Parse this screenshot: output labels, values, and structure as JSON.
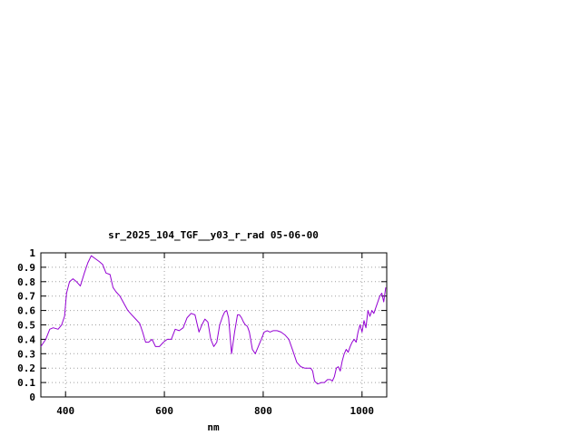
{
  "chart_data": {
    "type": "line",
    "title": "sr_2025_104_TGF__y03_r_rad 05-06-00",
    "xlabel": "nm",
    "ylabel": "",
    "xlim": [
      350,
      1050
    ],
    "ylim": [
      0,
      1
    ],
    "x_ticks": [
      400,
      600,
      800,
      1000
    ],
    "y_ticks": [
      0,
      0.1,
      0.2,
      0.3,
      0.4,
      0.5,
      0.6,
      0.7,
      0.8,
      0.9,
      1
    ],
    "x_tick_labels": [
      "400",
      "600",
      "800",
      "1000"
    ],
    "y_tick_labels": [
      "0",
      "0.1",
      "0.2",
      "0.3",
      "0.4",
      "0.5",
      "0.6",
      "0.7",
      "0.8",
      "0.9",
      "1"
    ],
    "grid": true,
    "series": [
      {
        "color": "#9400d3",
        "x": [
          350,
          360,
          368,
          375,
          385,
          392,
          398,
          402,
          408,
          415,
          422,
          430,
          438,
          445,
          452,
          460,
          468,
          475,
          482,
          490,
          496,
          502,
          510,
          518,
          526,
          534,
          542,
          550,
          556,
          562,
          568,
          575,
          582,
          590,
          598,
          606,
          614,
          622,
          630,
          638,
          646,
          654,
          662,
          670,
          676,
          682,
          688,
          694,
          700,
          706,
          712,
          718,
          722,
          726,
          730,
          736,
          742,
          748,
          752,
          756,
          760,
          764,
          768,
          772,
          778,
          784,
          790,
          796,
          802,
          808,
          814,
          820,
          828,
          836,
          844,
          852,
          860,
          868,
          876,
          884,
          890,
          896,
          900,
          904,
          910,
          918,
          924,
          930,
          936,
          940,
          944,
          948,
          952,
          956,
          960,
          964,
          968,
          972,
          976,
          980,
          984,
          988,
          992,
          996,
          1000,
          1004,
          1008,
          1012,
          1016,
          1020,
          1024,
          1028,
          1032,
          1036,
          1040,
          1044,
          1048
        ],
        "y": [
          0.35,
          0.4,
          0.47,
          0.48,
          0.47,
          0.5,
          0.56,
          0.72,
          0.8,
          0.82,
          0.8,
          0.77,
          0.86,
          0.93,
          0.98,
          0.96,
          0.94,
          0.92,
          0.86,
          0.85,
          0.76,
          0.73,
          0.7,
          0.65,
          0.6,
          0.57,
          0.54,
          0.51,
          0.45,
          0.38,
          0.38,
          0.4,
          0.35,
          0.35,
          0.38,
          0.4,
          0.4,
          0.47,
          0.46,
          0.48,
          0.55,
          0.58,
          0.57,
          0.45,
          0.5,
          0.54,
          0.52,
          0.4,
          0.35,
          0.38,
          0.5,
          0.56,
          0.59,
          0.6,
          0.55,
          0.3,
          0.45,
          0.57,
          0.57,
          0.55,
          0.52,
          0.5,
          0.49,
          0.45,
          0.33,
          0.3,
          0.35,
          0.4,
          0.45,
          0.46,
          0.45,
          0.46,
          0.46,
          0.45,
          0.43,
          0.4,
          0.32,
          0.24,
          0.21,
          0.2,
          0.2,
          0.2,
          0.18,
          0.11,
          0.09,
          0.1,
          0.1,
          0.12,
          0.12,
          0.11,
          0.14,
          0.2,
          0.21,
          0.18,
          0.25,
          0.3,
          0.33,
          0.31,
          0.35,
          0.38,
          0.4,
          0.38,
          0.45,
          0.5,
          0.45,
          0.53,
          0.48,
          0.6,
          0.56,
          0.6,
          0.58,
          0.62,
          0.66,
          0.7,
          0.72,
          0.66,
          0.76
        ]
      }
    ]
  }
}
